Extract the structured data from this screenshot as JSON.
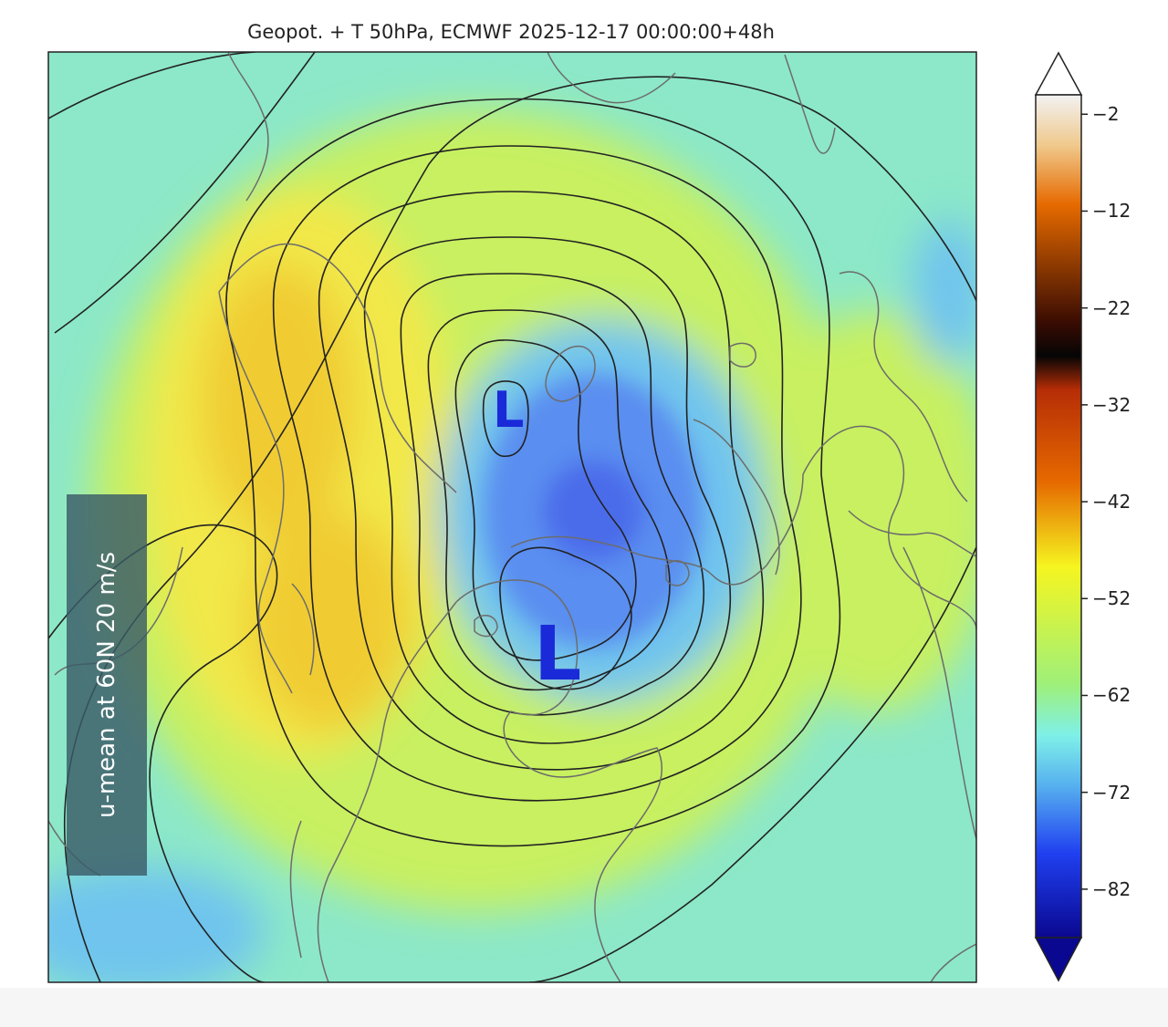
{
  "title": "Geopot. + T 50hPa, ECMWF 2025-12-17 00:00:00+48h",
  "annotation": "u-mean at 60N 20 m/s",
  "lows": [
    {
      "label": "L",
      "name": "low-north"
    },
    {
      "label": "L",
      "name": "low-main"
    }
  ],
  "colorbar": {
    "ticks": [
      "−2",
      "−12",
      "−22",
      "−32",
      "−42",
      "−52",
      "−62",
      "−72",
      "−82"
    ],
    "tick_values": [
      -2,
      -12,
      -22,
      -32,
      -42,
      -52,
      -62,
      -72,
      -82
    ],
    "range": [
      -87,
      0
    ],
    "colors": {
      "top": "#f2f2f2",
      "tan": "#f0c98c",
      "orange": "#e66a00",
      "dark_brown": "#3a0c02",
      "black": "#050505",
      "red_brown": "#b62d06",
      "yellow": "#f5f520",
      "green": "#9ef07a",
      "cyan": "#7ff0e8",
      "light_blue": "#56b0ef",
      "blue": "#2040f0",
      "navy": "#0a0890"
    }
  },
  "field_colors": {
    "background": "#8ce8c8",
    "yellow_green": "#c8f060",
    "yellow": "#f2e84a",
    "orange_yellow": "#f0cc30",
    "light_blue": "#70c4ee",
    "blue": "#5a8ef0",
    "deep_blue": "#4c6cea",
    "contour": "#222222",
    "coastline": "#6c6c6c",
    "low_label": "#1a2ad8"
  }
}
